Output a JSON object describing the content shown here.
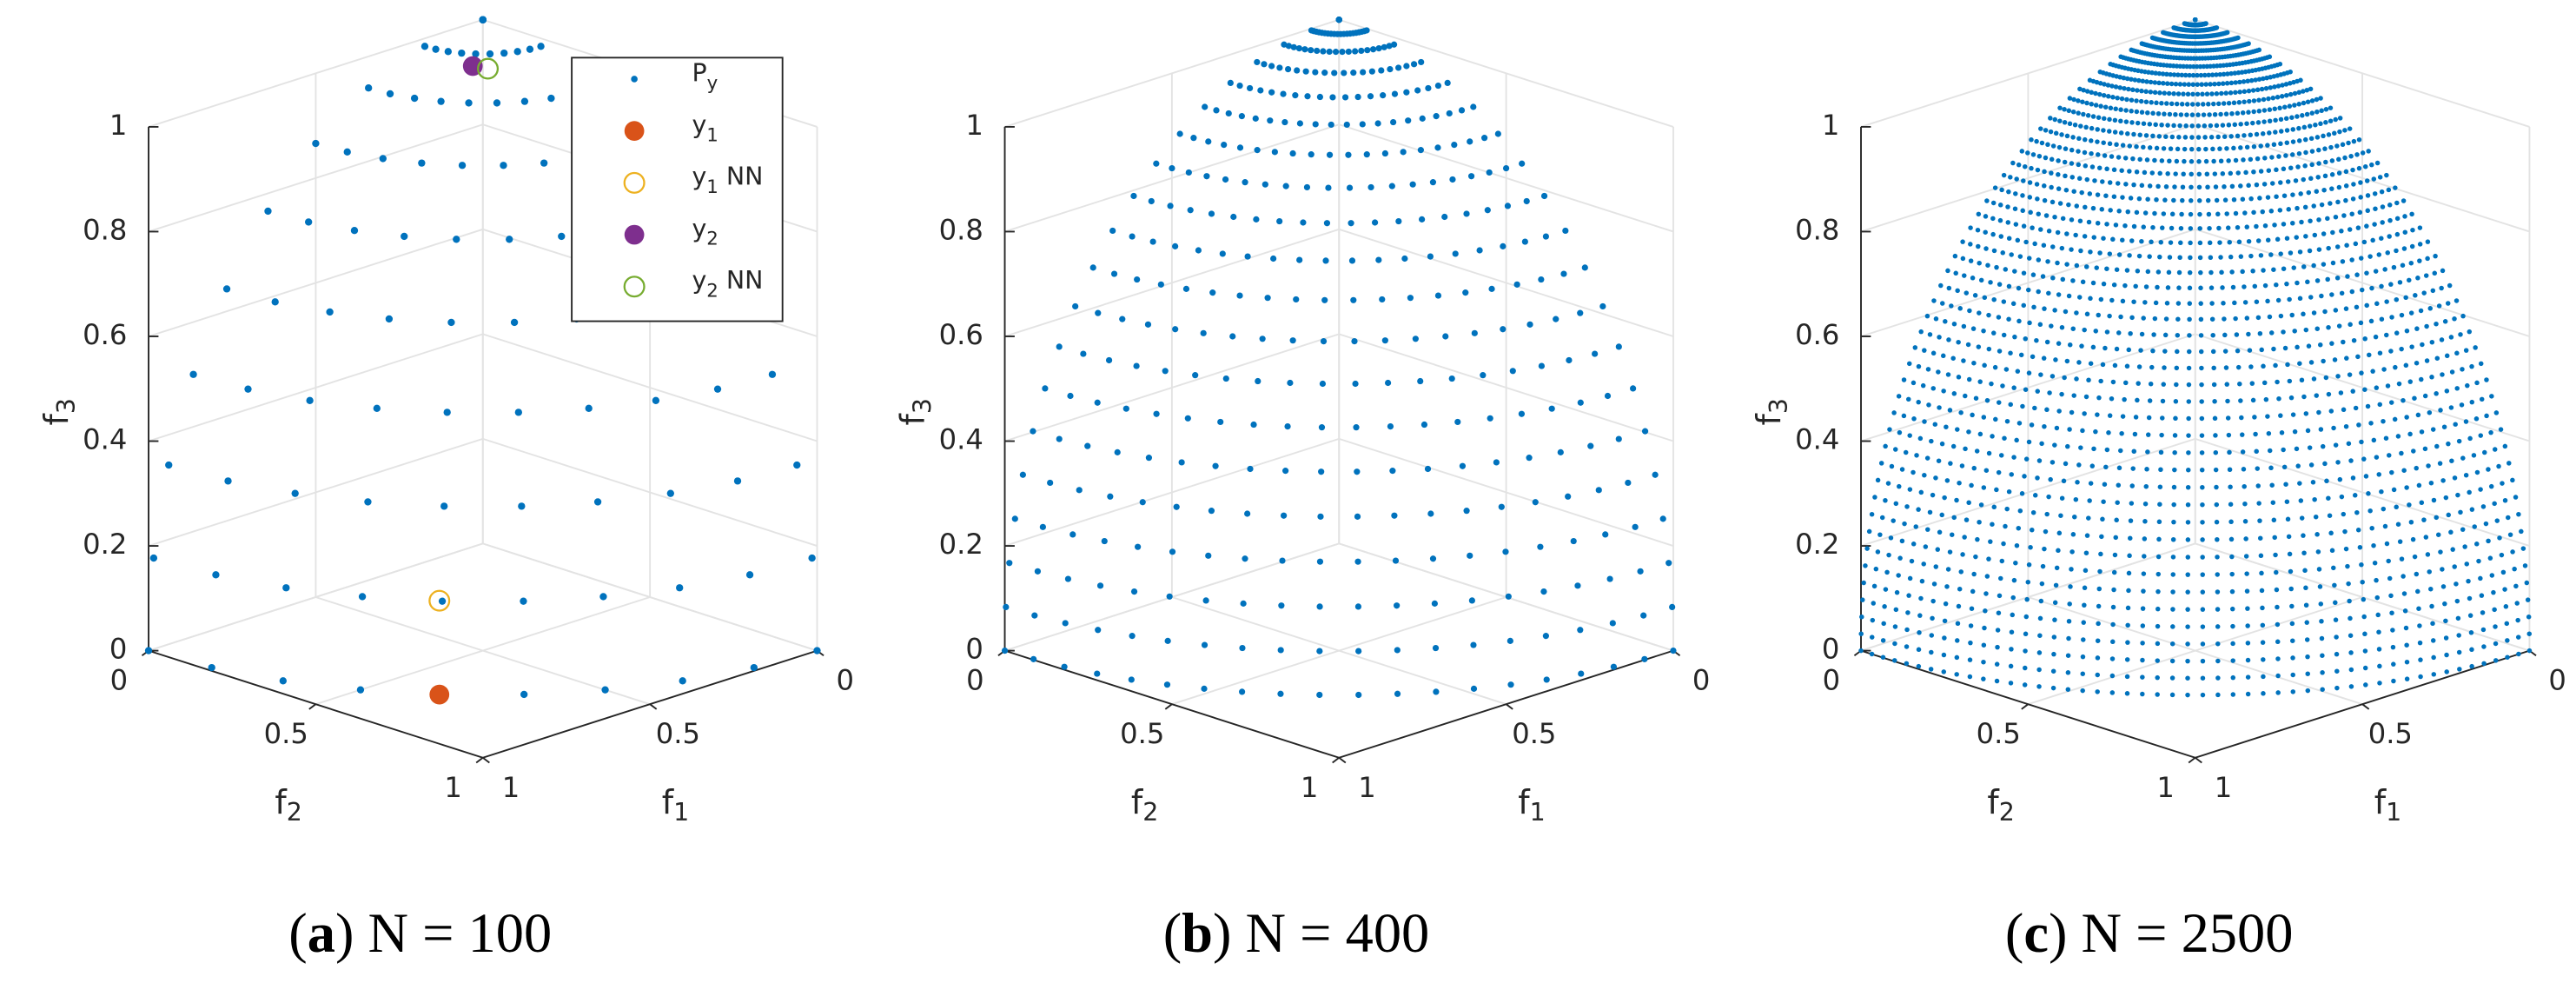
{
  "chart_data": [
    {
      "type": "scatter3d",
      "N": 100,
      "caption": [
        "(",
        "a",
        ") N = 100"
      ],
      "xlabel": [
        "f",
        "1"
      ],
      "ylabel": [
        "f",
        "2"
      ],
      "zlabel": [
        "f",
        "3"
      ],
      "xlim": [
        0,
        1
      ],
      "xticks": [
        0,
        0.5,
        1
      ],
      "ylim": [
        0,
        1
      ],
      "yticks": [
        0,
        0.5,
        1
      ],
      "zlim": [
        0,
        1
      ],
      "zticks": [
        0,
        0.2,
        0.4,
        0.6,
        0.8,
        1
      ],
      "grid": true,
      "legend": "northeast",
      "series": [
        {
          "name": [
            "P",
            "y"
          ],
          "color": "#0072BD",
          "marker": "dot"
        },
        {
          "name": [
            "y",
            "1"
          ],
          "color": "#D95319",
          "marker": "filled",
          "x": [
            0.77
          ],
          "y": [
            0.64
          ],
          "z": [
            0.0
          ]
        },
        {
          "name": [
            "y",
            "1",
            " NN"
          ],
          "color": "#EDB120",
          "marker": "open",
          "x": [
            0.76
          ],
          "y": [
            0.63
          ],
          "z": [
            0.175
          ]
        },
        {
          "name": [
            "y",
            "2"
          ],
          "color": "#7E2F8E",
          "marker": "filled",
          "x": [
            0.17
          ],
          "y": [
            0.14
          ],
          "z": [
            0.975
          ]
        },
        {
          "name": [
            "y",
            "2",
            " NN"
          ],
          "color": "#77AC30",
          "marker": "open",
          "x": [
            0.155
          ],
          "y": [
            0.17
          ],
          "z": [
            0.973
          ]
        }
      ]
    },
    {
      "type": "scatter3d",
      "N": 400,
      "caption": [
        "(",
        "b",
        ") N = 400"
      ],
      "xlabel": [
        "f",
        "1"
      ],
      "ylabel": [
        "f",
        "2"
      ],
      "zlabel": [
        "f",
        "3"
      ],
      "xlim": [
        0,
        1
      ],
      "xticks": [
        0,
        0.5,
        1
      ],
      "ylim": [
        0,
        1
      ],
      "yticks": [
        0,
        0.5,
        1
      ],
      "zlim": [
        0,
        1
      ],
      "zticks": [
        0,
        0.2,
        0.4,
        0.6,
        0.8,
        1
      ],
      "grid": true,
      "series": [
        {
          "color": "#0072BD",
          "marker": "dot"
        }
      ]
    },
    {
      "type": "scatter3d",
      "N": 2500,
      "caption": [
        "(",
        "c",
        ") N = 2500"
      ],
      "xlabel": [
        "f",
        "1"
      ],
      "ylabel": [
        "f",
        "2"
      ],
      "zlabel": [
        "f",
        "3"
      ],
      "xlim": [
        0,
        1
      ],
      "xticks": [
        0,
        0.5,
        1
      ],
      "ylim": [
        0,
        1
      ],
      "yticks": [
        0,
        0.5,
        1
      ],
      "zlim": [
        0,
        1
      ],
      "zticks": [
        0,
        0.2,
        0.4,
        0.6,
        0.8,
        1
      ],
      "grid": true,
      "series": [
        {
          "color": "#0072BD",
          "marker": "dot"
        }
      ]
    }
  ]
}
